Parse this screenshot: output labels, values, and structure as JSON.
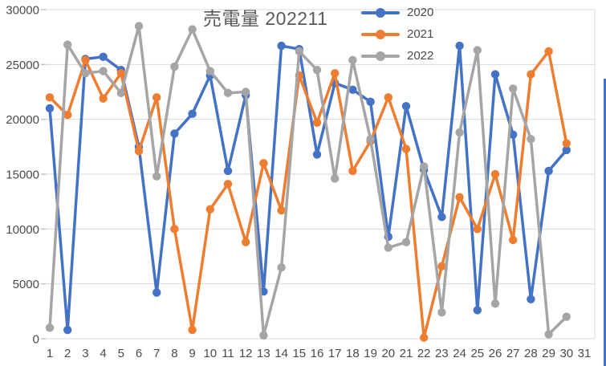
{
  "chart": {
    "title": "売電量 202211",
    "colors": {
      "accent_2020": "#4472C4",
      "accent_2021": "#ED7D31",
      "accent_2022": "#A5A5A5",
      "gridline": "#D9D9D9",
      "axis_tick": "#BFBFBF",
      "text": "#4a4a4a",
      "right_edge_border": "#4472C4"
    }
  },
  "chart_data": {
    "type": "line",
    "title": "売電量 202211",
    "xlabel": "",
    "ylabel": "",
    "ylim": [
      0,
      30000
    ],
    "yticks": [
      0,
      5000,
      10000,
      15000,
      20000,
      25000,
      30000
    ],
    "grid": true,
    "legend_position": "top-right-inside",
    "x": [
      1,
      2,
      3,
      4,
      5,
      6,
      7,
      8,
      9,
      10,
      11,
      12,
      13,
      14,
      15,
      16,
      17,
      18,
      19,
      20,
      21,
      22,
      23,
      24,
      25,
      26,
      27,
      28,
      29,
      30,
      31
    ],
    "series": [
      {
        "name": "2020",
        "color": "#4472C4",
        "values": [
          21000,
          800,
          25500,
          25700,
          24500,
          17500,
          4200,
          18700,
          20500,
          24000,
          15300,
          22200,
          4300,
          26700,
          26400,
          16800,
          23300,
          22700,
          21600,
          9300,
          21200,
          15400,
          11100,
          26700,
          2600,
          24100,
          18600,
          3600,
          15300,
          17200,
          null
        ]
      },
      {
        "name": "2021",
        "color": "#ED7D31",
        "values": [
          22000,
          20400,
          25400,
          21900,
          24200,
          17100,
          22000,
          10000,
          800,
          11800,
          14100,
          8800,
          16000,
          11700,
          24000,
          19700,
          24200,
          15300,
          18000,
          22000,
          17300,
          100,
          6600,
          12900,
          10000,
          15000,
          9000,
          24100,
          26200,
          17800,
          null
        ]
      },
      {
        "name": "2022",
        "color": "#A5A5A5",
        "values": [
          1000,
          26800,
          24200,
          24400,
          22400,
          28500,
          14800,
          24800,
          28200,
          24400,
          22400,
          22500,
          300,
          6500,
          26200,
          24500,
          14600,
          25400,
          18200,
          8300,
          8800,
          15700,
          2400,
          18800,
          26300,
          3200,
          22800,
          18200,
          400,
          2000,
          null
        ]
      }
    ]
  }
}
